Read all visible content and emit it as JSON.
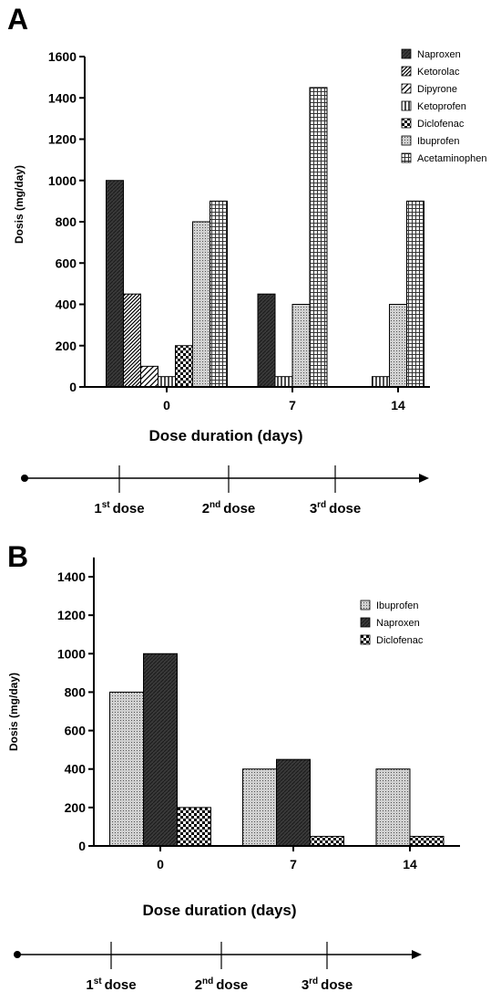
{
  "panel_a_label": "A",
  "panel_b_label": "B",
  "timeline": {
    "doses": [
      {
        "num": "1",
        "sup": "st",
        "word": "dose"
      },
      {
        "num": "2",
        "sup": "nd",
        "word": "dose"
      },
      {
        "num": "3",
        "sup": "rd",
        "word": "dose"
      }
    ]
  },
  "patterns": {
    "Naproxen": "dark",
    "Ketorolac": "diag-dense",
    "Dipyrone": "diag",
    "Ketoprofen": "vertical",
    "Diclofenac": "checker",
    "Ibuprofen": "dots",
    "Acetaminophen": "grid"
  },
  "chart_data": [
    {
      "type": "bar",
      "categories": [
        "0",
        "7",
        "14"
      ],
      "series": [
        {
          "name": "Naproxen",
          "values": [
            1000,
            450,
            null
          ]
        },
        {
          "name": "Ketorolac",
          "values": [
            450,
            null,
            null
          ]
        },
        {
          "name": "Dipyrone",
          "values": [
            100,
            null,
            null
          ]
        },
        {
          "name": "Ketoprofen",
          "values": [
            50,
            50,
            50
          ]
        },
        {
          "name": "Diclofenac",
          "values": [
            200,
            null,
            null
          ]
        },
        {
          "name": "Ibuprofen",
          "values": [
            800,
            400,
            400
          ]
        },
        {
          "name": "Acetaminophen",
          "values": [
            900,
            1450,
            900
          ]
        }
      ],
      "xlabel": "Dose duration (days)",
      "ylabel": "Dosis (mg/day)",
      "ylim": [
        0,
        1600
      ],
      "yticks": [
        0,
        200,
        400,
        600,
        800,
        1000,
        1200,
        1400,
        1600
      ],
      "legend": "top-right",
      "grid": false
    },
    {
      "type": "bar",
      "categories": [
        "0",
        "7",
        "14"
      ],
      "series": [
        {
          "name": "Ibuprofen",
          "values": [
            800,
            400,
            400
          ]
        },
        {
          "name": "Naproxen",
          "values": [
            1000,
            450,
            null
          ]
        },
        {
          "name": "Diclofenac",
          "values": [
            200,
            50,
            50
          ]
        }
      ],
      "xlabel": "Dose duration (days)",
      "ylabel": "Dosis (mg/day)",
      "ylim": [
        0,
        1500
      ],
      "yticks": [
        0,
        200,
        400,
        600,
        800,
        1000,
        1200,
        1400
      ],
      "legend": "top-right",
      "grid": false
    }
  ]
}
